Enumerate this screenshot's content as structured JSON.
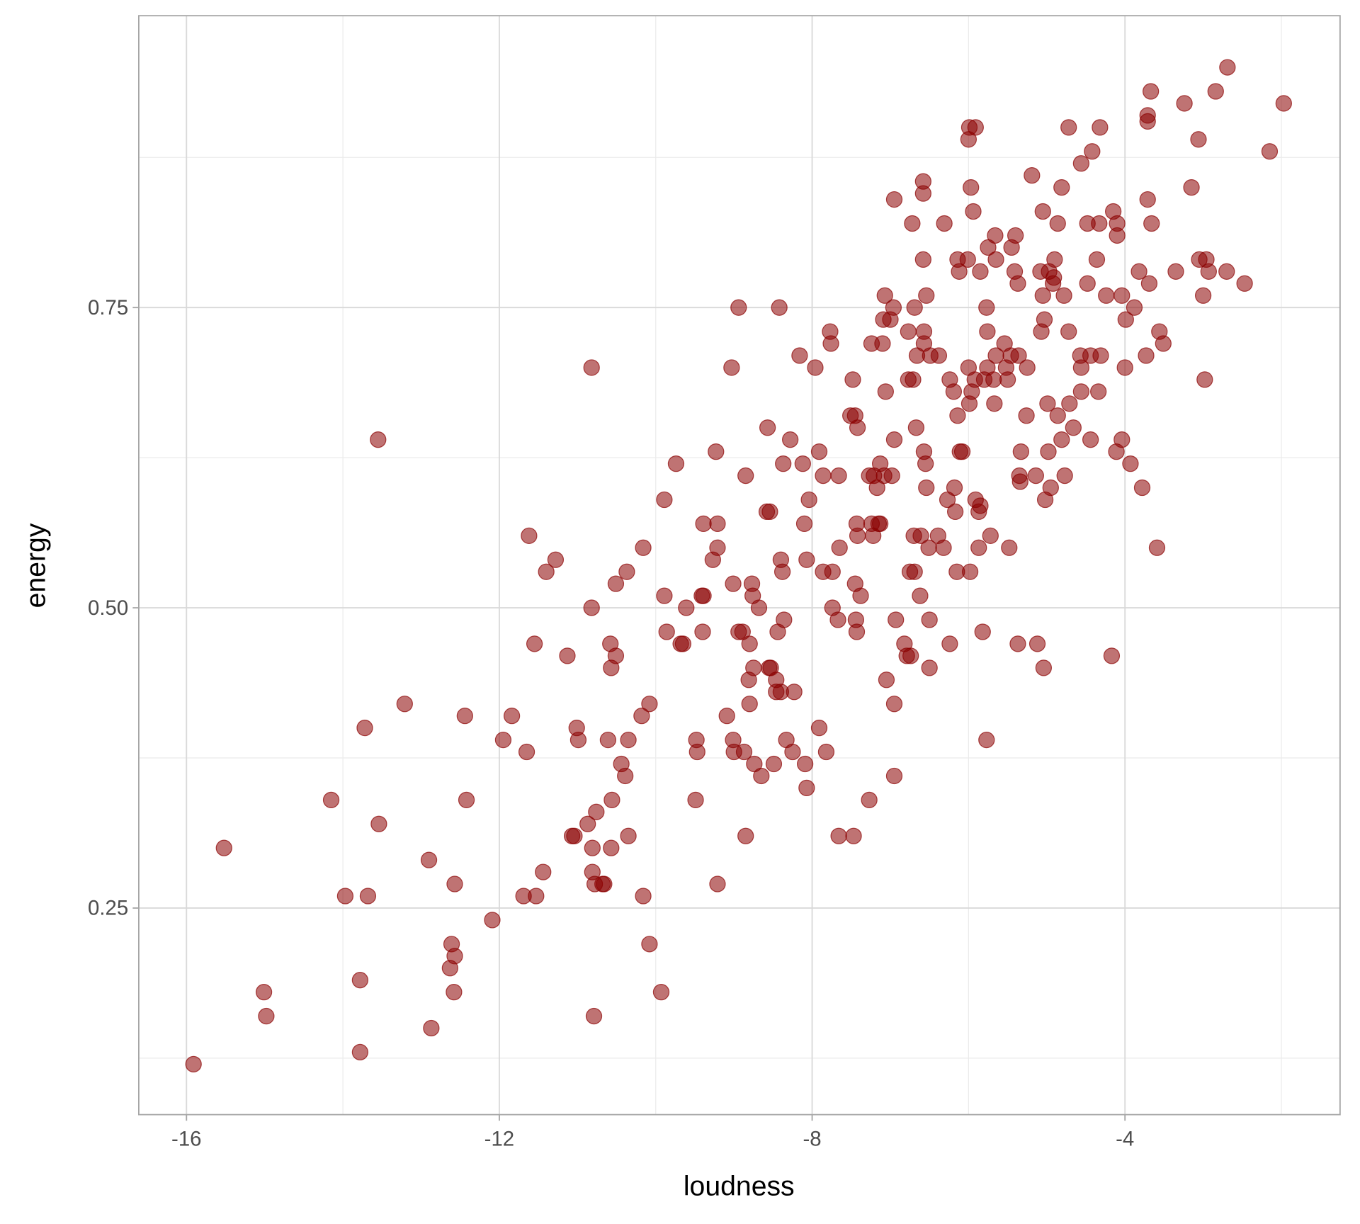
{
  "chart_data": {
    "type": "scatter",
    "title": "",
    "xlabel": "loudness",
    "ylabel": "energy",
    "xlim": [
      -16.61,
      -1.25
    ],
    "ylim": [
      0.078,
      0.993
    ],
    "x_major_ticks": [
      -16,
      -12,
      -8,
      -4
    ],
    "x_tick_labels": [
      "-16",
      "-12",
      "-8",
      "-4"
    ],
    "x_minor_ticks": [
      -14,
      -10,
      -6,
      -2
    ],
    "y_major_ticks": [
      0.25,
      0.5,
      0.75
    ],
    "y_tick_labels": [
      "0.25",
      "0.50",
      "0.75"
    ],
    "y_minor_ticks": [
      0.125,
      0.375,
      0.625,
      0.875
    ],
    "grid": true,
    "point_color": "#8B0000",
    "point_alpha": 0.55,
    "points": [
      [
        -15.91,
        0.12
      ],
      [
        -15.52,
        0.3
      ],
      [
        -15.01,
        0.18
      ],
      [
        -14.98,
        0.16
      ],
      [
        -14.15,
        0.34
      ],
      [
        -13.97,
        0.26
      ],
      [
        -13.78,
        0.19
      ],
      [
        -13.78,
        0.13
      ],
      [
        -13.72,
        0.4
      ],
      [
        -13.68,
        0.26
      ],
      [
        -13.54,
        0.32
      ],
      [
        -13.55,
        0.64
      ],
      [
        -13.21,
        0.42
      ],
      [
        -12.9,
        0.29
      ],
      [
        -12.87,
        0.15
      ],
      [
        -12.61,
        0.22
      ],
      [
        -12.57,
        0.27
      ],
      [
        -12.63,
        0.2
      ],
      [
        -12.57,
        0.21
      ],
      [
        -12.58,
        0.18
      ],
      [
        -12.44,
        0.41
      ],
      [
        -12.42,
        0.34
      ],
      [
        -12.09,
        0.24
      ],
      [
        -11.95,
        0.39
      ],
      [
        -11.84,
        0.41
      ],
      [
        -11.69,
        0.26
      ],
      [
        -11.65,
        0.38
      ],
      [
        -11.62,
        0.56
      ],
      [
        -11.55,
        0.47
      ],
      [
        -11.53,
        0.26
      ],
      [
        -11.44,
        0.28
      ],
      [
        -11.4,
        0.53
      ],
      [
        -11.28,
        0.54
      ],
      [
        -11.13,
        0.46
      ],
      [
        -11.07,
        0.31
      ],
      [
        -11.04,
        0.31
      ],
      [
        -11.01,
        0.4
      ],
      [
        -10.99,
        0.39
      ],
      [
        -10.87,
        0.32
      ],
      [
        -10.82,
        0.7
      ],
      [
        -10.82,
        0.5
      ],
      [
        -10.81,
        0.3
      ],
      [
        -10.81,
        0.28
      ],
      [
        -10.78,
        0.27
      ],
      [
        -10.79,
        0.16
      ],
      [
        -10.76,
        0.33
      ],
      [
        -10.68,
        0.27
      ],
      [
        -10.66,
        0.27
      ],
      [
        -10.61,
        0.39
      ],
      [
        -10.58,
        0.47
      ],
      [
        -10.57,
        0.45
      ],
      [
        -10.56,
        0.34
      ],
      [
        -10.57,
        0.3
      ],
      [
        -10.51,
        0.46
      ],
      [
        -10.51,
        0.52
      ],
      [
        -10.44,
        0.37
      ],
      [
        -10.39,
        0.36
      ],
      [
        -10.37,
        0.53
      ],
      [
        -10.35,
        0.39
      ],
      [
        -10.35,
        0.31
      ],
      [
        -10.18,
        0.41
      ],
      [
        -10.16,
        0.55
      ],
      [
        -10.16,
        0.26
      ],
      [
        -10.08,
        0.42
      ],
      [
        -10.08,
        0.22
      ],
      [
        -9.93,
        0.18
      ],
      [
        -9.89,
        0.59
      ],
      [
        -9.89,
        0.51
      ],
      [
        -9.86,
        0.48
      ],
      [
        -9.74,
        0.62
      ],
      [
        -9.68,
        0.47
      ],
      [
        -9.65,
        0.47
      ],
      [
        -9.61,
        0.5
      ],
      [
        -9.49,
        0.34
      ],
      [
        -9.48,
        0.39
      ],
      [
        -9.47,
        0.38
      ],
      [
        -9.41,
        0.51
      ],
      [
        -9.39,
        0.57
      ],
      [
        -9.4,
        0.48
      ],
      [
        -9.39,
        0.51
      ],
      [
        -9.27,
        0.54
      ],
      [
        -9.23,
        0.63
      ],
      [
        -9.21,
        0.27
      ],
      [
        -9.21,
        0.57
      ],
      [
        -9.21,
        0.55
      ],
      [
        -9.09,
        0.41
      ],
      [
        -9.03,
        0.7
      ],
      [
        -9.01,
        0.39
      ],
      [
        -9.01,
        0.52
      ],
      [
        -9.0,
        0.38
      ],
      [
        -8.94,
        0.75
      ],
      [
        -8.94,
        0.48
      ],
      [
        -8.89,
        0.48
      ],
      [
        -8.87,
        0.38
      ],
      [
        -8.85,
        0.31
      ],
      [
        -8.85,
        0.61
      ],
      [
        -8.81,
        0.44
      ],
      [
        -8.8,
        0.42
      ],
      [
        -8.8,
        0.47
      ],
      [
        -8.77,
        0.52
      ],
      [
        -8.76,
        0.51
      ],
      [
        -8.75,
        0.45
      ],
      [
        -8.74,
        0.37
      ],
      [
        -8.68,
        0.5
      ],
      [
        -8.65,
        0.36
      ],
      [
        -8.58,
        0.58
      ],
      [
        -8.57,
        0.65
      ],
      [
        -8.55,
        0.45
      ],
      [
        -8.54,
        0.58
      ],
      [
        -8.53,
        0.45
      ],
      [
        -8.49,
        0.37
      ],
      [
        -8.46,
        0.44
      ],
      [
        -8.46,
        0.43
      ],
      [
        -8.44,
        0.48
      ],
      [
        -8.42,
        0.75
      ],
      [
        -8.4,
        0.43
      ],
      [
        -8.4,
        0.54
      ],
      [
        -8.38,
        0.53
      ],
      [
        -8.37,
        0.62
      ],
      [
        -8.36,
        0.49
      ],
      [
        -8.33,
        0.39
      ],
      [
        -8.28,
        0.64
      ],
      [
        -8.25,
        0.38
      ],
      [
        -8.23,
        0.43
      ],
      [
        -8.16,
        0.71
      ],
      [
        -8.12,
        0.62
      ],
      [
        -8.1,
        0.57
      ],
      [
        -8.09,
        0.37
      ],
      [
        -8.07,
        0.35
      ],
      [
        -8.07,
        0.54
      ],
      [
        -8.04,
        0.59
      ],
      [
        -7.96,
        0.7
      ],
      [
        -7.91,
        0.63
      ],
      [
        -7.91,
        0.4
      ],
      [
        -7.86,
        0.61
      ],
      [
        -7.86,
        0.53
      ],
      [
        -7.82,
        0.38
      ],
      [
        -7.77,
        0.73
      ],
      [
        -7.76,
        0.72
      ],
      [
        -7.74,
        0.53
      ],
      [
        -7.74,
        0.5
      ],
      [
        -7.67,
        0.49
      ],
      [
        -7.66,
        0.61
      ],
      [
        -7.65,
        0.55
      ],
      [
        -7.66,
        0.31
      ],
      [
        -7.51,
        0.66
      ],
      [
        -7.48,
        0.69
      ],
      [
        -7.47,
        0.31
      ],
      [
        -7.45,
        0.66
      ],
      [
        -7.45,
        0.52
      ],
      [
        -7.44,
        0.49
      ],
      [
        -7.43,
        0.48
      ],
      [
        -7.43,
        0.57
      ],
      [
        -7.42,
        0.56
      ],
      [
        -7.42,
        0.65
      ],
      [
        -7.38,
        0.51
      ],
      [
        -7.27,
        0.34
      ],
      [
        -7.27,
        0.61
      ],
      [
        -7.24,
        0.72
      ],
      [
        -7.24,
        0.57
      ],
      [
        -7.22,
        0.56
      ],
      [
        -7.21,
        0.61
      ],
      [
        -7.17,
        0.6
      ],
      [
        -7.15,
        0.57
      ],
      [
        -7.13,
        0.57
      ],
      [
        -7.13,
        0.62
      ],
      [
        -7.1,
        0.72
      ],
      [
        -7.09,
        0.74
      ],
      [
        -7.08,
        0.61
      ],
      [
        -7.07,
        0.76
      ],
      [
        -7.06,
        0.68
      ],
      [
        -7.05,
        0.44
      ],
      [
        -7.0,
        0.74
      ],
      [
        -6.98,
        0.61
      ],
      [
        -6.96,
        0.75
      ],
      [
        -6.95,
        0.84
      ],
      [
        -6.95,
        0.64
      ],
      [
        -6.95,
        0.42
      ],
      [
        -6.95,
        0.36
      ],
      [
        -6.93,
        0.49
      ],
      [
        -6.82,
        0.47
      ],
      [
        -6.79,
        0.46
      ],
      [
        -6.77,
        0.73
      ],
      [
        -6.77,
        0.69
      ],
      [
        -6.75,
        0.53
      ],
      [
        -6.74,
        0.46
      ],
      [
        -6.72,
        0.82
      ],
      [
        -6.71,
        0.69
      ],
      [
        -6.7,
        0.56
      ],
      [
        -6.69,
        0.75
      ],
      [
        -6.69,
        0.53
      ],
      [
        -6.67,
        0.65
      ],
      [
        -6.66,
        0.71
      ],
      [
        -6.62,
        0.51
      ],
      [
        -6.61,
        0.56
      ],
      [
        -6.58,
        0.855
      ],
      [
        -6.58,
        0.845
      ],
      [
        -6.58,
        0.79
      ],
      [
        -6.57,
        0.73
      ],
      [
        -6.57,
        0.72
      ],
      [
        -6.57,
        0.63
      ],
      [
        -6.55,
        0.62
      ],
      [
        -6.54,
        0.6
      ],
      [
        -6.54,
        0.76
      ],
      [
        -6.51,
        0.55
      ],
      [
        -6.5,
        0.45
      ],
      [
        -6.5,
        0.49
      ],
      [
        -6.49,
        0.71
      ],
      [
        -6.39,
        0.56
      ],
      [
        -6.38,
        0.71
      ],
      [
        -6.32,
        0.55
      ],
      [
        -6.31,
        0.82
      ],
      [
        -6.27,
        0.59
      ],
      [
        -6.24,
        0.47
      ],
      [
        -6.24,
        0.69
      ],
      [
        -6.19,
        0.68
      ],
      [
        -6.18,
        0.6
      ],
      [
        -6.17,
        0.58
      ],
      [
        -6.15,
        0.53
      ],
      [
        -6.14,
        0.66
      ],
      [
        -6.14,
        0.79
      ],
      [
        -6.12,
        0.78
      ],
      [
        -6.11,
        0.63
      ],
      [
        -6.08,
        0.63
      ],
      [
        -6.01,
        0.79
      ],
      [
        -6.0,
        0.89
      ],
      [
        -6.0,
        0.7
      ],
      [
        -5.99,
        0.9
      ],
      [
        -5.99,
        0.67
      ],
      [
        -5.98,
        0.53
      ],
      [
        -5.97,
        0.85
      ],
      [
        -5.96,
        0.68
      ],
      [
        -5.94,
        0.83
      ],
      [
        -5.92,
        0.69
      ],
      [
        -5.91,
        0.9
      ],
      [
        -5.91,
        0.59
      ],
      [
        -5.87,
        0.55
      ],
      [
        -5.87,
        0.58
      ],
      [
        -5.85,
        0.78
      ],
      [
        -5.85,
        0.585
      ],
      [
        -5.82,
        0.48
      ],
      [
        -5.8,
        0.69
      ],
      [
        -5.77,
        0.75
      ],
      [
        -5.77,
        0.39
      ],
      [
        -5.76,
        0.73
      ],
      [
        -5.76,
        0.7
      ],
      [
        -5.75,
        0.8
      ],
      [
        -5.72,
        0.56
      ],
      [
        -5.68,
        0.69
      ],
      [
        -5.67,
        0.67
      ],
      [
        -5.66,
        0.81
      ],
      [
        -5.65,
        0.71
      ],
      [
        -5.65,
        0.79
      ],
      [
        -5.54,
        0.72
      ],
      [
        -5.52,
        0.7
      ],
      [
        -5.5,
        0.69
      ],
      [
        -5.48,
        0.55
      ],
      [
        -5.46,
        0.71
      ],
      [
        -5.45,
        0.8
      ],
      [
        -5.41,
        0.78
      ],
      [
        -5.4,
        0.81
      ],
      [
        -5.37,
        0.77
      ],
      [
        -5.37,
        0.47
      ],
      [
        -5.36,
        0.71
      ],
      [
        -5.35,
        0.61
      ],
      [
        -5.34,
        0.605
      ],
      [
        -5.33,
        0.63
      ],
      [
        -5.26,
        0.66
      ],
      [
        -5.25,
        0.7
      ],
      [
        -5.19,
        0.86
      ],
      [
        -5.14,
        0.61
      ],
      [
        -5.12,
        0.47
      ],
      [
        -5.08,
        0.78
      ],
      [
        -5.07,
        0.73
      ],
      [
        -5.05,
        0.76
      ],
      [
        -5.05,
        0.83
      ],
      [
        -5.04,
        0.45
      ],
      [
        -5.03,
        0.74
      ],
      [
        -5.02,
        0.59
      ],
      [
        -4.99,
        0.67
      ],
      [
        -4.98,
        0.63
      ],
      [
        -4.97,
        0.78
      ],
      [
        -4.95,
        0.6
      ],
      [
        -4.92,
        0.77
      ],
      [
        -4.91,
        0.775
      ],
      [
        -4.9,
        0.79
      ],
      [
        -4.86,
        0.66
      ],
      [
        -4.86,
        0.82
      ],
      [
        -4.81,
        0.64
      ],
      [
        -4.81,
        0.85
      ],
      [
        -4.78,
        0.76
      ],
      [
        -4.77,
        0.61
      ],
      [
        -4.72,
        0.73
      ],
      [
        -4.72,
        0.9
      ],
      [
        -4.71,
        0.67
      ],
      [
        -4.66,
        0.65
      ],
      [
        -4.57,
        0.71
      ],
      [
        -4.56,
        0.7
      ],
      [
        -4.56,
        0.68
      ],
      [
        -4.56,
        0.87
      ],
      [
        -4.48,
        0.77
      ],
      [
        -4.48,
        0.82
      ],
      [
        -4.44,
        0.64
      ],
      [
        -4.44,
        0.71
      ],
      [
        -4.42,
        0.88
      ],
      [
        -4.36,
        0.79
      ],
      [
        -4.34,
        0.68
      ],
      [
        -4.33,
        0.82
      ],
      [
        -4.32,
        0.9
      ],
      [
        -4.31,
        0.71
      ],
      [
        -4.24,
        0.76
      ],
      [
        -4.17,
        0.46
      ],
      [
        -4.15,
        0.83
      ],
      [
        -4.1,
        0.81
      ],
      [
        -4.1,
        0.82
      ],
      [
        -4.11,
        0.63
      ],
      [
        -4.04,
        0.64
      ],
      [
        -4.04,
        0.76
      ],
      [
        -4.0,
        0.7
      ],
      [
        -3.99,
        0.74
      ],
      [
        -3.93,
        0.62
      ],
      [
        -3.88,
        0.75
      ],
      [
        -3.82,
        0.78
      ],
      [
        -3.78,
        0.6
      ],
      [
        -3.73,
        0.71
      ],
      [
        -3.71,
        0.905
      ],
      [
        -3.71,
        0.91
      ],
      [
        -3.71,
        0.84
      ],
      [
        -3.69,
        0.77
      ],
      [
        -3.67,
        0.93
      ],
      [
        -3.66,
        0.82
      ],
      [
        -3.59,
        0.55
      ],
      [
        -3.56,
        0.73
      ],
      [
        -3.51,
        0.72
      ],
      [
        -3.35,
        0.78
      ],
      [
        -3.24,
        0.92
      ],
      [
        -3.15,
        0.85
      ],
      [
        -3.06,
        0.89
      ],
      [
        -3.05,
        0.79
      ],
      [
        -3.0,
        0.76
      ],
      [
        -2.98,
        0.69
      ],
      [
        -2.96,
        0.79
      ],
      [
        -2.93,
        0.78
      ],
      [
        -2.84,
        0.93
      ],
      [
        -2.7,
        0.78
      ],
      [
        -2.69,
        0.95
      ],
      [
        -2.47,
        0.77
      ],
      [
        -2.15,
        0.88
      ],
      [
        -1.97,
        0.92
      ]
    ]
  }
}
